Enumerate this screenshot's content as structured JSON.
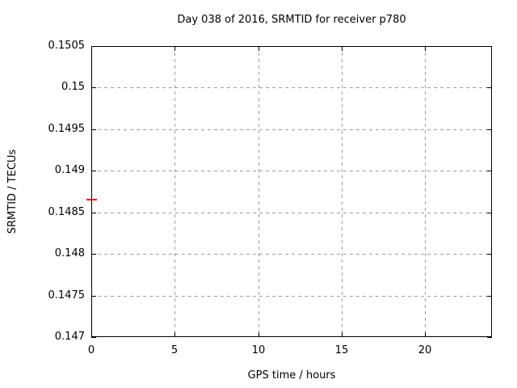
{
  "chart_data": {
    "type": "scatter",
    "title": "Day 038 of 2016, SRMTID for receiver p780",
    "xlabel": "GPS time / hours",
    "ylabel": "SRMTID / TECUs",
    "xlim": [
      0,
      24
    ],
    "ylim": [
      0.147,
      0.1505
    ],
    "x_ticks": [
      {
        "value": 0,
        "label": "0"
      },
      {
        "value": 5,
        "label": "5"
      },
      {
        "value": 10,
        "label": "10"
      },
      {
        "value": 15,
        "label": "15"
      },
      {
        "value": 20,
        "label": "20"
      }
    ],
    "y_ticks": [
      {
        "value": 0.147,
        "label": "0.147"
      },
      {
        "value": 0.1475,
        "label": "0.1475"
      },
      {
        "value": 0.148,
        "label": "0.148"
      },
      {
        "value": 0.1485,
        "label": "0.1485"
      },
      {
        "value": 0.149,
        "label": "0.149"
      },
      {
        "value": 0.1495,
        "label": "0.1495"
      },
      {
        "value": 0.15,
        "label": "0.15"
      },
      {
        "value": 0.1505,
        "label": "0.1505"
      }
    ],
    "grid": true,
    "legend": "none",
    "series": [
      {
        "name": "SRMTID",
        "marker": "horizontal-dash",
        "color": "#ff0000",
        "points": [
          {
            "x": 0,
            "y": 0.14865
          }
        ]
      }
    ],
    "colors": {
      "background": "#ffffff",
      "border": "#000000",
      "grid": "#9e9e9e",
      "text": "#000000",
      "marker": "#ff0000"
    }
  }
}
